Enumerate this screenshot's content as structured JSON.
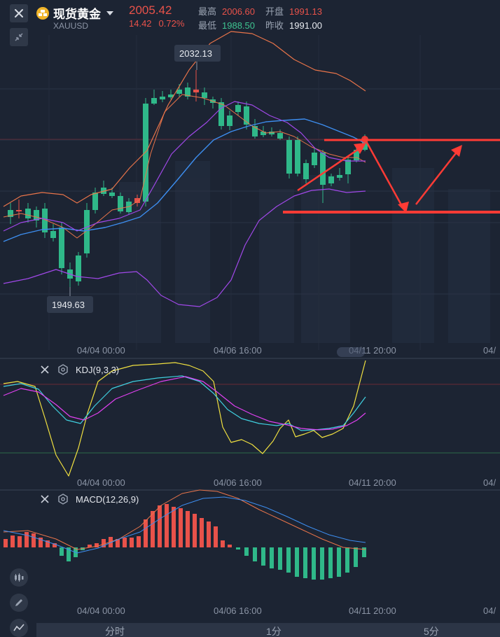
{
  "header": {
    "symbol_name": "现货黄金",
    "symbol_code": "XAUUSD",
    "last_price": "2005.42",
    "change": "14.42",
    "change_pct": "0.72%",
    "high_label": "最高",
    "high_value": "2006.60",
    "open_label": "开盘",
    "open_value": "1991.13",
    "low_label": "最低",
    "low_value": "1988.50",
    "prev_close_label": "昨收",
    "prev_close_value": "1991.00"
  },
  "main_chart": {
    "max_marker": "2032.13",
    "min_marker": "1949.63",
    "x_labels": [
      "04/04 00:00",
      "04/06 16:00",
      "04/11 20:00",
      "04/"
    ]
  },
  "kdj": {
    "label": "KDJ(9,3,3)",
    "x_labels": [
      "04/04 00:00",
      "04/06 16:00",
      "04/11 20:00",
      "04/"
    ]
  },
  "macd": {
    "label": "MACD(12,26,9)",
    "x_labels": [
      "04/04 00:00",
      "04/06 16:00",
      "04/11 20:00",
      "04/"
    ]
  },
  "tabs": [
    "分时",
    "1分",
    "5分"
  ],
  "colors": {
    "up": "#e8524a",
    "down": "#2fb889",
    "background": "#1c2433",
    "ma_orange": "#e8744a",
    "ma_blue": "#3d8ef0",
    "ma_purple": "#a048e8",
    "kdj_yellow": "#f0e040",
    "kdj_cyan": "#40d0e0",
    "kdj_magenta": "#e040f0"
  }
}
